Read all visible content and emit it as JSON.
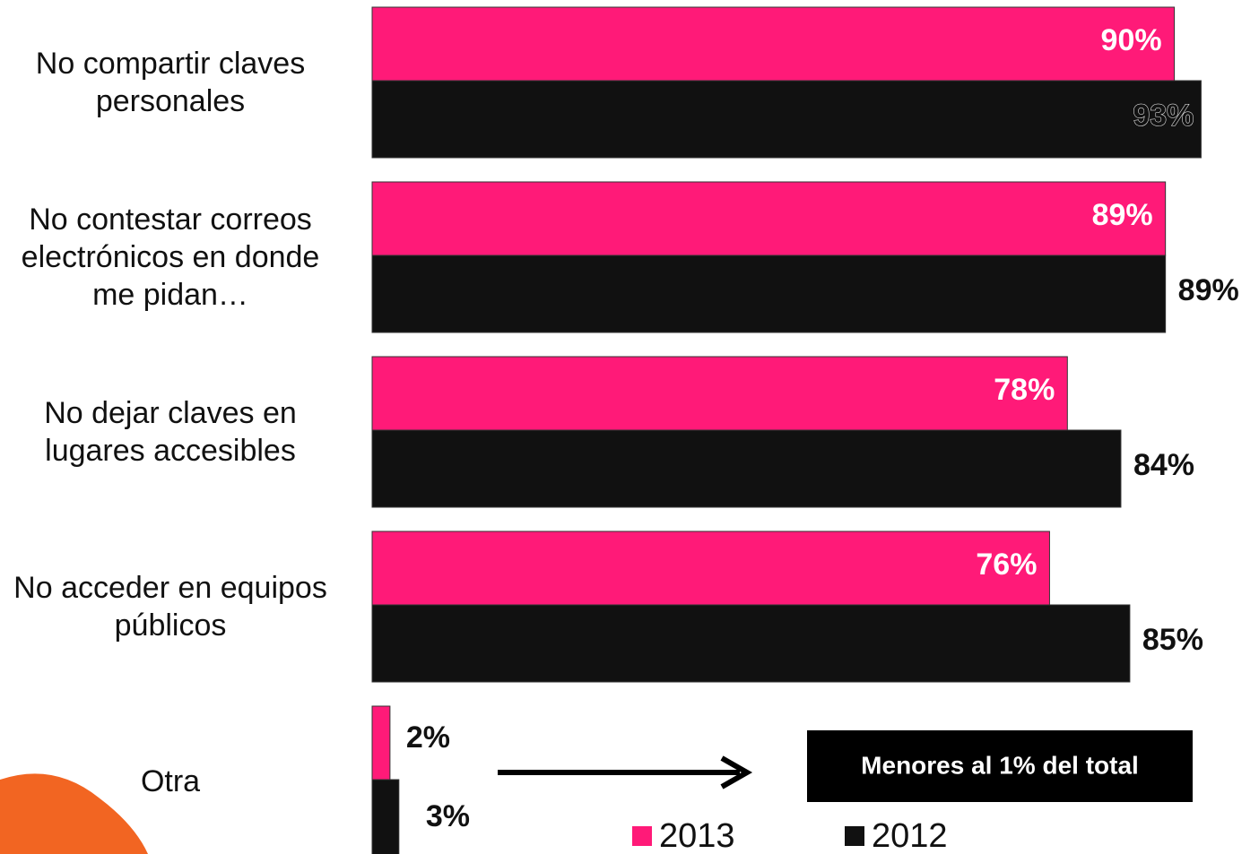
{
  "chart_data": {
    "type": "bar",
    "orientation": "horizontal",
    "categories": [
      "No compartir claves personales",
      "No contestar correos electrónicos en donde me pidan…",
      "No dejar claves en lugares accesibles",
      "No acceder en equipos públicos",
      "Otra"
    ],
    "series": [
      {
        "name": "2013",
        "color": "#ff1a78",
        "values": [
          90,
          89,
          78,
          76,
          2
        ],
        "value_labels": [
          "90%",
          "89%",
          "78%",
          "76%",
          "2%"
        ]
      },
      {
        "name": "2012",
        "color": "#111111",
        "values": [
          93,
          89,
          84,
          85,
          3
        ],
        "value_labels": [
          "93%",
          "89%",
          "84%",
          "85%",
          "3%"
        ]
      }
    ],
    "annotation": "Menores al 1% del total",
    "legend": "bottom"
  }
}
